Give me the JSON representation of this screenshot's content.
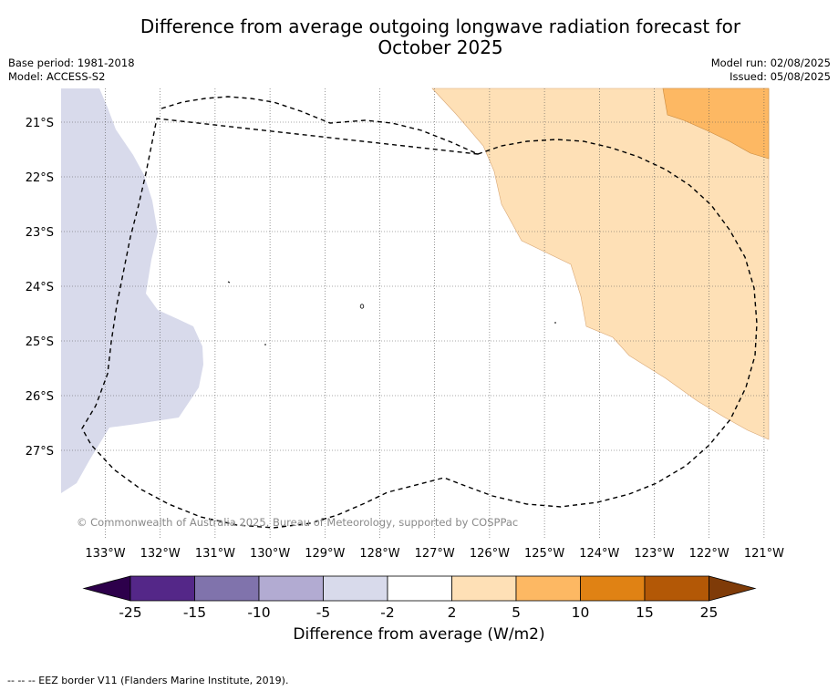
{
  "title_line1": "Difference from average outgoing longwave radiation forecast for",
  "title_line2": "October 2025",
  "meta_left": [
    "Base period: 1981-2018",
    "Model: ACCESS-S2"
  ],
  "meta_right": [
    "Model run: 02/08/2025",
    "Issued: 05/08/2025"
  ],
  "copyright": "© Commonwealth of Australia 2025, Bureau of Meteorology, supported by COSPPac",
  "map": {
    "lat_labels": [
      "21°S",
      "22°S",
      "23°S",
      "24°S",
      "25°S",
      "26°S",
      "27°S"
    ],
    "lon_labels": [
      "133°W",
      "132°W",
      "131°W",
      "130°W",
      "129°W",
      "128°W",
      "127°W",
      "126°W",
      "125°W",
      "124°W",
      "123°W",
      "122°W",
      "121°W"
    ]
  },
  "colorbar": {
    "title": "Difference from average (W/m2)",
    "tick_labels": [
      "-25",
      "-15",
      "-10",
      "-5",
      "-2",
      "2",
      "5",
      "10",
      "15",
      "25"
    ],
    "colors": [
      "#2d004b",
      "#542788",
      "#8073ac",
      "#b2abd2",
      "#d8daeb",
      "#ffffff",
      "#fee0b6",
      "#fdb863",
      "#e08214",
      "#b35806",
      "#7f3b08"
    ]
  },
  "footer": "--  --  -- EEZ border V11 (Flanders Marine Institute, 2019)."
}
